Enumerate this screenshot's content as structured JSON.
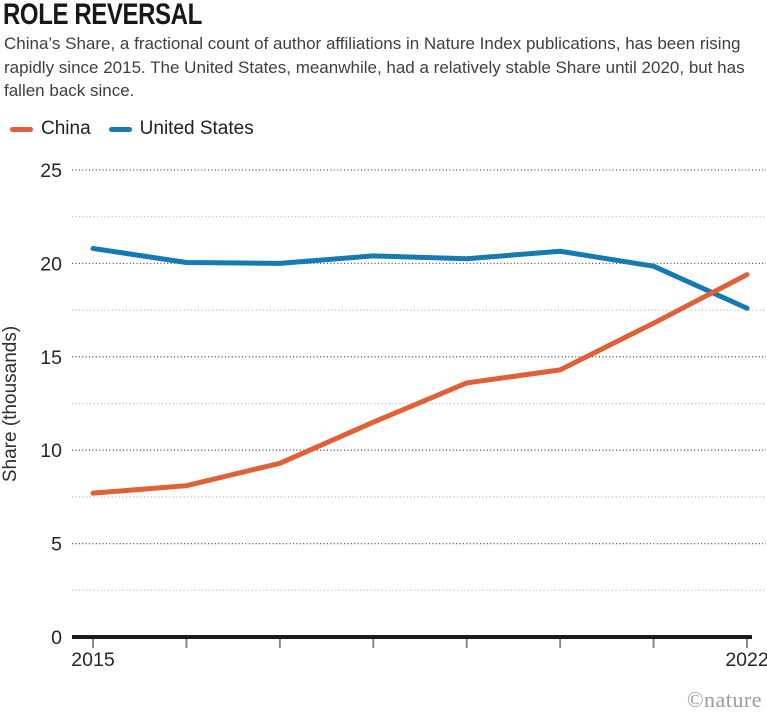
{
  "header": {
    "title": "ROLE REVERSAL",
    "subtitle": "China’s Share, a fractional count of author affiliations in Nature Index publications, has been rising rapidly since 2015. The United States, meanwhile, had a relatively stable Share until 2020, but has fallen back since."
  },
  "legend": {
    "items": [
      {
        "label": "China",
        "color": "#e0603a"
      },
      {
        "label": "United States",
        "color": "#1579b2"
      }
    ]
  },
  "footer": {
    "credit": "©nature"
  },
  "colors": {
    "china_line": "#e0603a",
    "us_line": "#1579b2",
    "axis": "#1a1a1a",
    "major_grid": "#4d4d4d",
    "minor_grid": "#b3b3b3",
    "tick_marks": "#8a8a8a"
  },
  "chart_data": {
    "type": "line",
    "title": "ROLE REVERSAL",
    "x": [
      2015,
      2016,
      2017,
      2018,
      2019,
      2020,
      2021,
      2022
    ],
    "series": [
      {
        "name": "United States",
        "color": "#1579b2",
        "values": [
          20.8,
          20.05,
          20.0,
          20.4,
          20.25,
          20.65,
          19.85,
          17.6
        ]
      },
      {
        "name": "China",
        "color": "#e0603a",
        "values": [
          7.7,
          8.1,
          9.3,
          11.5,
          13.6,
          14.3,
          16.8,
          19.4
        ]
      }
    ],
    "xlabel": "",
    "ylabel": "Share (thousands)",
    "ylim": [
      0,
      25
    ],
    "yticks": [
      0,
      5,
      10,
      15,
      20,
      25
    ],
    "minor_yticks": [
      2.5,
      7.5,
      12.5,
      17.5,
      22.5
    ],
    "xtick_labels_shown": [
      "2015",
      "2022"
    ],
    "legend_position": "top-left",
    "grid": "horizontal-dotted"
  }
}
